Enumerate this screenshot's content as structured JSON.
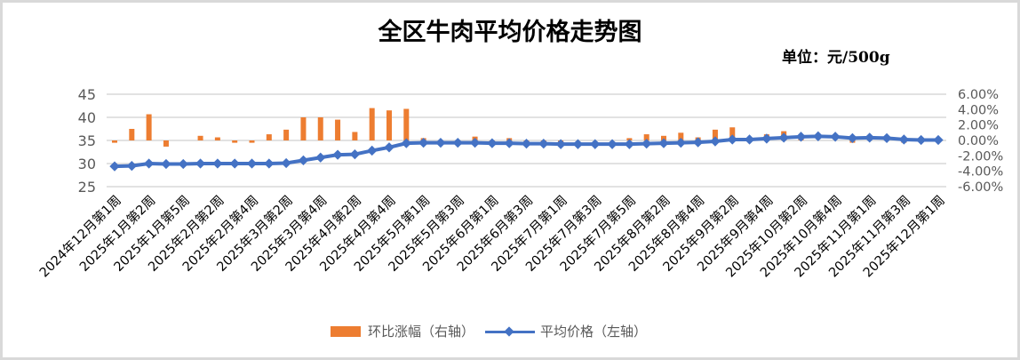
{
  "chart_data": {
    "type": "bar+line",
    "title": "全区牛肉平均价格走势图",
    "subtitle": "单位：元/500g",
    "x_tick_labels": [
      "2024年12月第1周",
      "2025年1月第2周",
      "2025年1月第5周",
      "2025年2月第2周",
      "2025年2月第4周",
      "2025年3月第2周",
      "2025年3月第4周",
      "2025年4月第2周",
      "2025年4月第4周",
      "2025年5月第1周",
      "2025年5月第3周",
      "2025年6月第1周",
      "2025年6月第3周",
      "2025年7月第1周",
      "2025年7月第3周",
      "2025年7月第5周",
      "2025年8月第2周",
      "2025年8月第4周",
      "2025年9月第2周",
      "2025年9月第4周",
      "2025年10月第2周",
      "2025年10月第4周",
      "2025年11月第1周",
      "2025年11月第3周",
      "2025年12月第1周"
    ],
    "n_points": 49,
    "series": [
      {
        "name": "环比涨幅（右轴）",
        "type": "bar",
        "axis": "right",
        "color": "#ed7d31",
        "unit": "%",
        "values": [
          -0.3,
          1.5,
          3.4,
          -0.8,
          0.0,
          0.6,
          0.4,
          -0.3,
          -0.3,
          0.8,
          1.4,
          3.0,
          3.0,
          2.7,
          1.1,
          4.2,
          3.9,
          4.1,
          0.3,
          -0.2,
          0.0,
          0.5,
          -0.2,
          0.3,
          -0.2,
          -0.3,
          -0.2,
          0.0,
          0.0,
          0.0,
          0.3,
          0.8,
          0.6,
          1.0,
          0.4,
          1.4,
          1.7,
          0.0,
          0.8,
          1.2,
          0.6,
          0.0,
          0.0,
          -0.3,
          0.0,
          0.0,
          -0.3,
          0.0,
          0.0
        ]
      },
      {
        "name": "平均价格（左轴）",
        "type": "line",
        "axis": "left",
        "color": "#4472c4",
        "unit": "元/500g",
        "values": [
          29.4,
          29.5,
          30.0,
          29.9,
          29.9,
          30.0,
          30.0,
          30.0,
          30.0,
          30.0,
          30.1,
          30.7,
          31.3,
          31.9,
          32.0,
          32.8,
          33.5,
          34.4,
          34.5,
          34.5,
          34.5,
          34.5,
          34.4,
          34.4,
          34.3,
          34.3,
          34.2,
          34.2,
          34.2,
          34.2,
          34.2,
          34.3,
          34.4,
          34.5,
          34.6,
          34.8,
          35.2,
          35.2,
          35.4,
          35.6,
          35.8,
          35.9,
          35.8,
          35.5,
          35.6,
          35.5,
          35.2,
          35.1,
          35.1
        ]
      }
    ],
    "left_axis": {
      "ticks": [
        "25",
        "30",
        "35",
        "40",
        "45"
      ],
      "min": 25,
      "max": 45,
      "step": 5
    },
    "right_axis": {
      "ticks": [
        "-6.00%",
        "-4.00%",
        "-2.00%",
        "0.00%",
        "2.00%",
        "4.00%",
        "6.00%"
      ],
      "min": -6,
      "max": 6,
      "step": 2
    },
    "grid": true,
    "legend_position": "bottom"
  },
  "header": {
    "title": "全区牛肉平均价格走势图",
    "unit": "单位：元/500g"
  },
  "legend": {
    "bar_label": "环比涨幅（右轴）",
    "line_label": "平均价格（左轴）"
  }
}
